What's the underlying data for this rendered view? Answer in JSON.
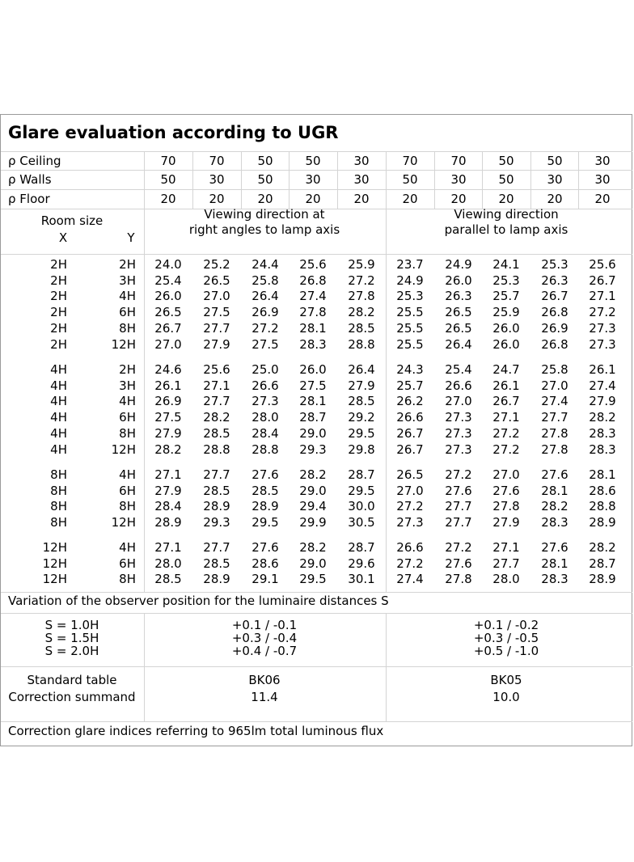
{
  "title": "Glare evaluation according to UGR",
  "reflectance": {
    "rows": [
      {
        "label": "ρ Ceiling",
        "values": [
          "70",
          "70",
          "50",
          "50",
          "30",
          "70",
          "70",
          "50",
          "50",
          "30"
        ]
      },
      {
        "label": "ρ Walls",
        "values": [
          "50",
          "30",
          "50",
          "30",
          "30",
          "50",
          "30",
          "50",
          "30",
          "30"
        ]
      },
      {
        "label": "ρ Floor",
        "values": [
          "20",
          "20",
          "20",
          "20",
          "20",
          "20",
          "20",
          "20",
          "20",
          "20"
        ]
      }
    ]
  },
  "room_size": {
    "label": "Room size",
    "x_label": "X",
    "y_label": "Y"
  },
  "viewing": {
    "perpendicular": [
      "Viewing direction at",
      "right angles to lamp axis"
    ],
    "parallel": [
      "Viewing direction",
      "parallel to lamp axis"
    ]
  },
  "groups": [
    {
      "rows": [
        {
          "x": "2H",
          "y": "2H",
          "values": [
            "24.0",
            "25.2",
            "24.4",
            "25.6",
            "25.9",
            "23.7",
            "24.9",
            "24.1",
            "25.3",
            "25.6"
          ]
        },
        {
          "x": "2H",
          "y": "3H",
          "values": [
            "25.4",
            "26.5",
            "25.8",
            "26.8",
            "27.2",
            "24.9",
            "26.0",
            "25.3",
            "26.3",
            "26.7"
          ]
        },
        {
          "x": "2H",
          "y": "4H",
          "values": [
            "26.0",
            "27.0",
            "26.4",
            "27.4",
            "27.8",
            "25.3",
            "26.3",
            "25.7",
            "26.7",
            "27.1"
          ]
        },
        {
          "x": "2H",
          "y": "6H",
          "values": [
            "26.5",
            "27.5",
            "26.9",
            "27.8",
            "28.2",
            "25.5",
            "26.5",
            "25.9",
            "26.8",
            "27.2"
          ]
        },
        {
          "x": "2H",
          "y": "8H",
          "values": [
            "26.7",
            "27.7",
            "27.2",
            "28.1",
            "28.5",
            "25.5",
            "26.5",
            "26.0",
            "26.9",
            "27.3"
          ]
        },
        {
          "x": "2H",
          "y": "12H",
          "values": [
            "27.0",
            "27.9",
            "27.5",
            "28.3",
            "28.8",
            "25.5",
            "26.4",
            "26.0",
            "26.8",
            "27.3"
          ]
        }
      ]
    },
    {
      "rows": [
        {
          "x": "4H",
          "y": "2H",
          "values": [
            "24.6",
            "25.6",
            "25.0",
            "26.0",
            "26.4",
            "24.3",
            "25.4",
            "24.7",
            "25.8",
            "26.1"
          ]
        },
        {
          "x": "4H",
          "y": "3H",
          "values": [
            "26.1",
            "27.1",
            "26.6",
            "27.5",
            "27.9",
            "25.7",
            "26.6",
            "26.1",
            "27.0",
            "27.4"
          ]
        },
        {
          "x": "4H",
          "y": "4H",
          "values": [
            "26.9",
            "27.7",
            "27.3",
            "28.1",
            "28.5",
            "26.2",
            "27.0",
            "26.7",
            "27.4",
            "27.9"
          ]
        },
        {
          "x": "4H",
          "y": "6H",
          "values": [
            "27.5",
            "28.2",
            "28.0",
            "28.7",
            "29.2",
            "26.6",
            "27.3",
            "27.1",
            "27.7",
            "28.2"
          ]
        },
        {
          "x": "4H",
          "y": "8H",
          "values": [
            "27.9",
            "28.5",
            "28.4",
            "29.0",
            "29.5",
            "26.7",
            "27.3",
            "27.2",
            "27.8",
            "28.3"
          ]
        },
        {
          "x": "4H",
          "y": "12H",
          "values": [
            "28.2",
            "28.8",
            "28.8",
            "29.3",
            "29.8",
            "26.7",
            "27.3",
            "27.2",
            "27.8",
            "28.3"
          ]
        }
      ]
    },
    {
      "rows": [
        {
          "x": "8H",
          "y": "4H",
          "values": [
            "27.1",
            "27.7",
            "27.6",
            "28.2",
            "28.7",
            "26.5",
            "27.2",
            "27.0",
            "27.6",
            "28.1"
          ]
        },
        {
          "x": "8H",
          "y": "6H",
          "values": [
            "27.9",
            "28.5",
            "28.5",
            "29.0",
            "29.5",
            "27.0",
            "27.6",
            "27.6",
            "28.1",
            "28.6"
          ]
        },
        {
          "x": "8H",
          "y": "8H",
          "values": [
            "28.4",
            "28.9",
            "28.9",
            "29.4",
            "30.0",
            "27.2",
            "27.7",
            "27.8",
            "28.2",
            "28.8"
          ]
        },
        {
          "x": "8H",
          "y": "12H",
          "values": [
            "28.9",
            "29.3",
            "29.5",
            "29.9",
            "30.5",
            "27.3",
            "27.7",
            "27.9",
            "28.3",
            "28.9"
          ]
        }
      ]
    },
    {
      "rows": [
        {
          "x": "12H",
          "y": "4H",
          "values": [
            "27.1",
            "27.7",
            "27.6",
            "28.2",
            "28.7",
            "26.6",
            "27.2",
            "27.1",
            "27.6",
            "28.2"
          ]
        },
        {
          "x": "12H",
          "y": "6H",
          "values": [
            "28.0",
            "28.5",
            "28.6",
            "29.0",
            "29.6",
            "27.2",
            "27.6",
            "27.7",
            "28.1",
            "28.7"
          ]
        },
        {
          "x": "12H",
          "y": "8H",
          "values": [
            "28.5",
            "28.9",
            "29.1",
            "29.5",
            "30.1",
            "27.4",
            "27.8",
            "28.0",
            "28.3",
            "28.9"
          ]
        }
      ]
    }
  ],
  "variation": {
    "heading": "Variation of the observer position for the luminaire distances S",
    "rows": [
      {
        "s": "S = 1.0H",
        "perpendicular": "+0.1 / -0.1",
        "parallel": "+0.1 / -0.2"
      },
      {
        "s": "S = 1.5H",
        "perpendicular": "+0.3 / -0.4",
        "parallel": "+0.3 / -0.5"
      },
      {
        "s": "S = 2.0H",
        "perpendicular": "+0.4 / -0.7",
        "parallel": "+0.5 / -1.0"
      }
    ]
  },
  "standard": {
    "label_table": "Standard table",
    "label_correction": "Correction summand",
    "perpendicular": {
      "table": "BK06",
      "correction": "11.4"
    },
    "parallel": {
      "table": "BK05",
      "correction": "10.0"
    }
  },
  "footer": "Correction glare indices referring to 965lm total luminous flux"
}
